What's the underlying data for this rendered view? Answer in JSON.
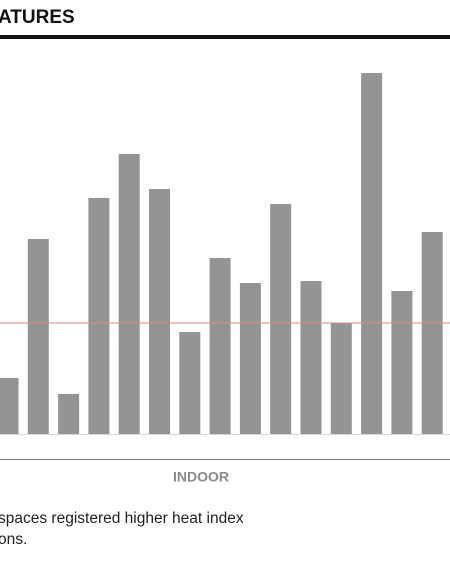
{
  "chart_data": {
    "type": "bar",
    "title": "ATURES",
    "xlabel": "INDOOR",
    "values": [
      56,
      195,
      40,
      236,
      280,
      245,
      102,
      176,
      151,
      230,
      153,
      111,
      361,
      143,
      202
    ],
    "color": "#939496",
    "reference": 111,
    "reference_color": "#e08a80",
    "ylim": [
      0,
      400
    ]
  },
  "note": [
    "spaces registered higher heat index",
    "ons."
  ]
}
